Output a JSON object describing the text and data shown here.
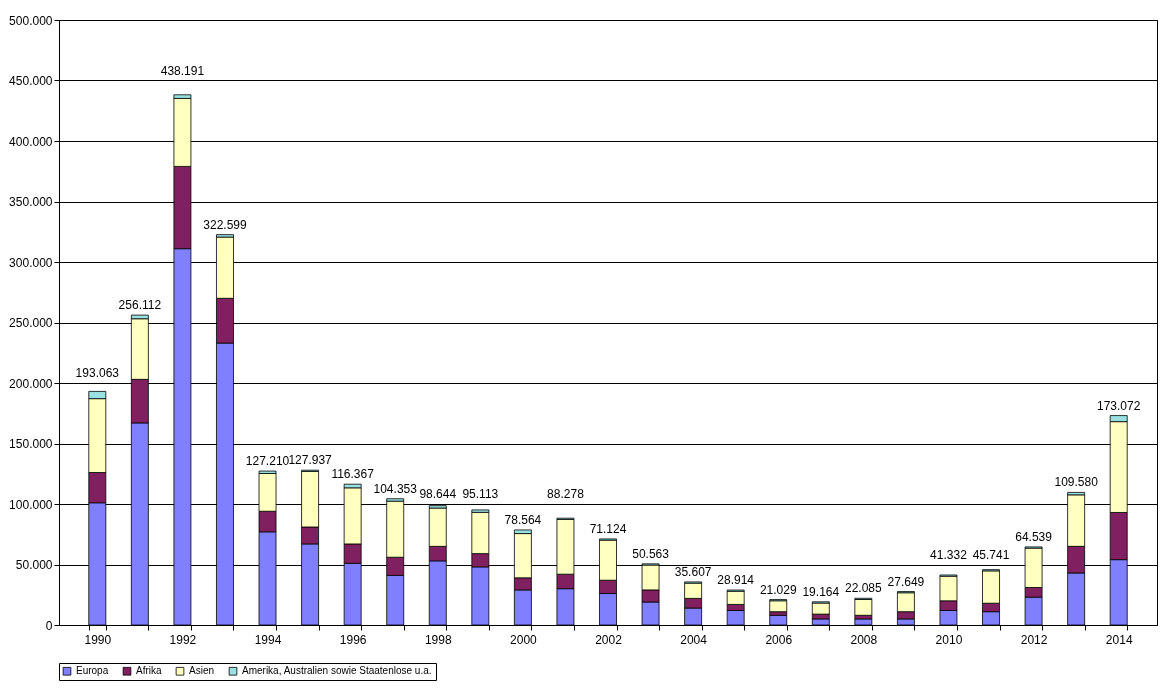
{
  "chart_data": {
    "type": "bar",
    "stacked": true,
    "categories": [
      "1990",
      null,
      "1992",
      null,
      "1994",
      null,
      "1996",
      null,
      "1998",
      null,
      "2000",
      null,
      "2002",
      null,
      "2004",
      null,
      "2006",
      null,
      "2008",
      null,
      "2010",
      null,
      "2012",
      null,
      "2014"
    ],
    "series": [
      {
        "name": "Europa",
        "color": "#8080ff",
        "values": [
          101000,
          167000,
          311000,
          233000,
          77000,
          67000,
          51000,
          41000,
          53000,
          48000,
          29000,
          30000,
          26000,
          19000,
          14000,
          12000,
          8000,
          5000,
          5000,
          5000,
          12000,
          11000,
          23000,
          43000,
          54000
        ]
      },
      {
        "name": "Afrika",
        "color": "#802060",
        "values": [
          25000,
          36000,
          68000,
          37000,
          17000,
          14000,
          16000,
          15000,
          12000,
          11000,
          10000,
          12000,
          11000,
          10000,
          8000,
          5000,
          3000,
          4000,
          3000,
          6000,
          8000,
          7000,
          8000,
          22000,
          39000
        ]
      },
      {
        "name": "Asien",
        "color": "#ffffc0",
        "values": [
          61063,
          50112,
          56191,
          50599,
          31210,
          45937,
          46367,
          46353,
          31644,
          34113,
          36564,
          45278,
          33124,
          20563,
          12607,
          10914,
          9029,
          9164,
          13085,
          15649,
          20332,
          26741,
          32539,
          42580,
          75072
        ]
      },
      {
        "name": "Amerika, Australien sowie Staatenlose u.a.",
        "color": "#99e0e0",
        "values": [
          6000,
          3000,
          3000,
          2000,
          2000,
          1000,
          3000,
          2000,
          2000,
          2000,
          3000,
          1000,
          1000,
          1000,
          1000,
          1000,
          1000,
          1000,
          1000,
          1000,
          1000,
          1000,
          1000,
          2000,
          5000
        ]
      }
    ],
    "totals": [
      "193.063",
      "256.112",
      "438.191",
      "322.599",
      "127.210",
      "127.937",
      "116.367",
      "104.353",
      "98.644",
      "95.113",
      "78.564",
      "88.278",
      "71.124",
      "50.563",
      "35.607",
      "28.914",
      "21.029",
      "19.164",
      "22.085",
      "27.649",
      "41.332",
      "45.741",
      "64.539",
      "109.580",
      "173.072"
    ],
    "ylim": [
      0,
      500000
    ],
    "yticks": [
      0,
      {
        "value": 50000,
        "label": "50.000"
      },
      {
        "value": 100000,
        "label": "100.000"
      },
      {
        "value": 150000,
        "label": "150.000"
      },
      {
        "value": 200000,
        "label": "200.000"
      },
      {
        "value": 250000,
        "label": "250.000"
      },
      {
        "value": 300000,
        "label": "300.000"
      },
      {
        "value": 350000,
        "label": "350.000"
      },
      {
        "value": 400000,
        "label": "400.000"
      },
      {
        "value": 450000,
        "label": "450.000"
      },
      {
        "value": 500000,
        "label": "500.000"
      }
    ],
    "grid": "y",
    "legend": "bottom"
  }
}
